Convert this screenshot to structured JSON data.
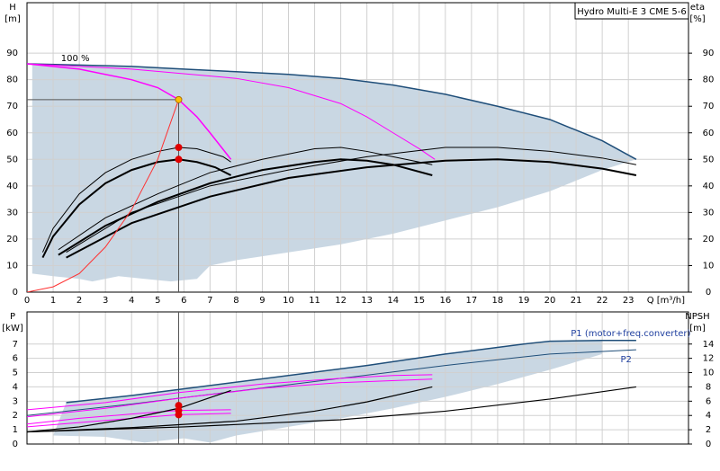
{
  "chart_data": [
    {
      "type": "line",
      "title": "Hydro Multi-E 3 CME 5-6",
      "y_label": "H",
      "y_unit": "[m]",
      "y2_label": "eta",
      "y2_unit": "[%]",
      "x_label": "Q [m³/h]",
      "annotations": [
        {
          "text": "100 %",
          "x": 1.3,
          "y": 88
        }
      ],
      "xlim": [
        0,
        25.3
      ],
      "ylim": [
        0,
        109
      ],
      "y2lim": [
        0,
        109
      ],
      "xticks": [
        0,
        1,
        2,
        3,
        4,
        5,
        6,
        7,
        8,
        9,
        10,
        11,
        12,
        13,
        14,
        15,
        16,
        17,
        18,
        19,
        20,
        21,
        22,
        23
      ],
      "show_x_tick_labels": true,
      "yticks": [
        0,
        10,
        20,
        30,
        40,
        50,
        60,
        70,
        80,
        90
      ],
      "y2ticks": [
        0,
        10,
        20,
        30,
        40,
        50,
        60,
        70,
        80,
        90
      ],
      "grid": true,
      "area": {
        "color": "#c9d7e3",
        "x": [
          0.2,
          2,
          4,
          6,
          8,
          10,
          12,
          14,
          16,
          18,
          20,
          22,
          23.3,
          22,
          20,
          18,
          16,
          14,
          12,
          10,
          8,
          7,
          6.5,
          5.5,
          4.5,
          3.5,
          2.5,
          2,
          1,
          0.2
        ],
        "values": [
          86,
          85.5,
          85,
          84,
          83,
          82,
          80.5,
          78,
          74.5,
          70,
          65,
          57,
          50,
          46,
          38,
          32,
          27,
          22,
          18,
          15,
          12,
          10,
          5,
          4,
          5,
          6,
          4,
          5,
          6,
          7
        ]
      },
      "series": [
        {
          "color": "#1f4e79",
          "width": 1.5,
          "x": [
            0,
            2,
            4,
            6,
            8,
            10,
            12,
            14,
            16,
            18,
            20,
            22,
            23.3
          ],
          "values": [
            86,
            85.5,
            85,
            84,
            83,
            82,
            80.5,
            78,
            74.5,
            70,
            65,
            57,
            50
          ]
        },
        {
          "color": "#ff00ff",
          "width": 1.5,
          "x": [
            0,
            2,
            4,
            5,
            5.8,
            6.5,
            7,
            7.8
          ],
          "values": [
            86,
            84,
            80,
            77,
            72.5,
            66,
            60,
            50
          ]
        },
        {
          "color": "#ff00ff",
          "width": 1,
          "x": [
            0,
            4,
            8,
            10,
            12,
            13,
            14,
            15,
            15.6
          ],
          "values": [
            86,
            84,
            80.5,
            77,
            71,
            66,
            60,
            54,
            50
          ]
        },
        {
          "color": "#000000",
          "width": 2,
          "x": [
            0.6,
            1,
            2,
            3,
            4,
            5,
            5.8,
            6.5,
            7.2,
            7.8
          ],
          "values": [
            13,
            21,
            33,
            41,
            46,
            49,
            50,
            49,
            47,
            44
          ]
        },
        {
          "color": "#000000",
          "width": 1,
          "x": [
            0.6,
            1,
            2,
            3,
            4,
            5,
            5.8,
            6.5,
            7.5,
            7.8
          ],
          "values": [
            15,
            24,
            37,
            45,
            50,
            53,
            54.5,
            54,
            51,
            49
          ]
        },
        {
          "color": "#000000",
          "width": 2,
          "x": [
            1.2,
            3,
            5,
            7,
            9,
            11,
            12,
            13,
            14,
            15.5
          ],
          "values": [
            14,
            25,
            34,
            41,
            46,
            49,
            50,
            49.5,
            48,
            44
          ]
        },
        {
          "color": "#000000",
          "width": 1,
          "x": [
            1.2,
            3,
            5,
            7,
            9,
            11,
            12,
            13,
            14,
            15.5
          ],
          "values": [
            16,
            28,
            37,
            45,
            50,
            54,
            54.5,
            53,
            51,
            48
          ]
        },
        {
          "color": "#000000",
          "width": 2,
          "x": [
            1.5,
            4,
            7,
            10,
            13,
            16,
            18,
            20,
            22,
            23.3
          ],
          "values": [
            13,
            26,
            36,
            43,
            47,
            49.5,
            50,
            49,
            46.5,
            44
          ]
        },
        {
          "color": "#000000",
          "width": 1,
          "x": [
            1.5,
            4,
            7,
            10,
            13,
            16,
            18,
            20,
            22,
            23.3
          ],
          "values": [
            15,
            30,
            40,
            46,
            51,
            54.5,
            54.5,
            53,
            50.5,
            48
          ]
        },
        {
          "color": "#ff3030",
          "width": 1,
          "x": [
            0,
            1,
            2,
            3,
            4,
            5,
            5.8
          ],
          "values": [
            0,
            2,
            7,
            17,
            31,
            50,
            72.5
          ]
        }
      ],
      "duty": {
        "x": 5.8,
        "y": 72.5,
        "color": "#555555"
      },
      "points": [
        {
          "x": 5.8,
          "y": 72.5,
          "color": "#ffc000"
        },
        {
          "x": 5.8,
          "y": 54.5,
          "color": "#e00000"
        },
        {
          "x": 5.8,
          "y": 50,
          "color": "#e00000"
        }
      ]
    },
    {
      "type": "line",
      "y_label": "P",
      "y_unit": "[kW]",
      "y2_label": "NPSH",
      "y2_unit": "[m]",
      "annotations": [
        {
          "text": "P1 (motor+freq.converter)",
          "x": 20.8,
          "y": 7.75
        },
        {
          "text": "P2",
          "x": 22.7,
          "y": 5.9
        }
      ],
      "xlim": [
        0,
        25.3
      ],
      "ylim": [
        0,
        9.25
      ],
      "y2lim": [
        0,
        18.5
      ],
      "xticks": [
        0,
        1,
        2,
        3,
        4,
        5,
        6,
        7,
        8,
        9,
        10,
        11,
        12,
        13,
        14,
        15,
        16,
        17,
        18,
        19,
        20,
        21,
        22,
        23
      ],
      "show_x_tick_labels": false,
      "yticks": [
        0,
        1,
        2,
        3,
        4,
        5,
        6,
        7
      ],
      "y2ticks": [
        0,
        2,
        4,
        6,
        8,
        10,
        12,
        14
      ],
      "grid": true,
      "area": {
        "color": "#c9d7e3",
        "x": [
          1.5,
          4,
          7,
          10,
          13,
          16,
          19,
          20,
          22,
          22,
          20,
          18,
          16,
          14,
          12,
          10,
          8,
          7,
          6,
          4.5,
          3,
          1
        ],
        "values": [
          2.9,
          3.4,
          4.1,
          4.8,
          5.5,
          6.3,
          7.0,
          7.2,
          7.25,
          6.3,
          5.2,
          4.2,
          3.3,
          2.5,
          1.8,
          1.2,
          0.6,
          0.1,
          0.4,
          0.1,
          0.5,
          0.6
        ]
      },
      "series": [
        {
          "color": "#1f4e79",
          "width": 1.5,
          "x": [
            1.5,
            4,
            7,
            10,
            13,
            16,
            19,
            20,
            22,
            23.3
          ],
          "values": [
            2.9,
            3.4,
            4.1,
            4.8,
            5.5,
            6.3,
            7.0,
            7.2,
            7.25,
            7.25
          ]
        },
        {
          "color": "#1f4e79",
          "width": 1,
          "x": [
            0,
            4,
            8,
            12,
            16,
            20,
            23.3
          ],
          "values": [
            2.0,
            2.8,
            3.7,
            4.6,
            5.5,
            6.3,
            6.6
          ]
        },
        {
          "color": "#ff00ff",
          "width": 1,
          "x": [
            0,
            3,
            5.8,
            9,
            12,
            14,
            15.5
          ],
          "values": [
            2.4,
            2.9,
            3.6,
            4.2,
            4.6,
            4.8,
            4.85
          ]
        },
        {
          "color": "#ff00ff",
          "width": 1,
          "x": [
            0,
            3,
            5.8,
            9,
            12,
            15.5
          ],
          "values": [
            1.9,
            2.5,
            3.2,
            3.9,
            4.3,
            4.55
          ]
        },
        {
          "color": "#ff00ff",
          "width": 1,
          "x": [
            0,
            2,
            4,
            5.8,
            7.8
          ],
          "values": [
            1.4,
            1.8,
            2.1,
            2.35,
            2.4
          ]
        },
        {
          "color": "#ff00ff",
          "width": 1,
          "x": [
            0,
            2,
            4,
            5.8,
            7.8
          ],
          "values": [
            1.2,
            1.5,
            1.8,
            2.05,
            2.15
          ]
        },
        {
          "color": "#000000",
          "width": 1.2,
          "axis": "y2",
          "x": [
            0,
            2,
            4,
            5.8,
            7.8
          ],
          "values": [
            1.7,
            2.4,
            3.6,
            5,
            7.5
          ]
        },
        {
          "color": "#000000",
          "width": 1.2,
          "axis": "y2",
          "x": [
            0,
            4,
            8,
            11,
            13,
            15.5
          ],
          "values": [
            1.7,
            2.3,
            3.2,
            4.6,
            5.9,
            8
          ]
        },
        {
          "color": "#000000",
          "width": 1.2,
          "axis": "y2",
          "x": [
            0,
            6,
            12,
            16,
            20,
            23.3
          ],
          "values": [
            1.7,
            2.4,
            3.4,
            4.6,
            6.3,
            8
          ]
        }
      ],
      "duty": {
        "x": 5.8,
        "color": "#555555"
      },
      "points": [
        {
          "x": 5.8,
          "y": 2.7,
          "color": "#e00000"
        },
        {
          "x": 5.8,
          "y": 2.35,
          "color": "#e00000"
        },
        {
          "x": 5.8,
          "y": 2.05,
          "color": "#e00000"
        }
      ]
    }
  ]
}
